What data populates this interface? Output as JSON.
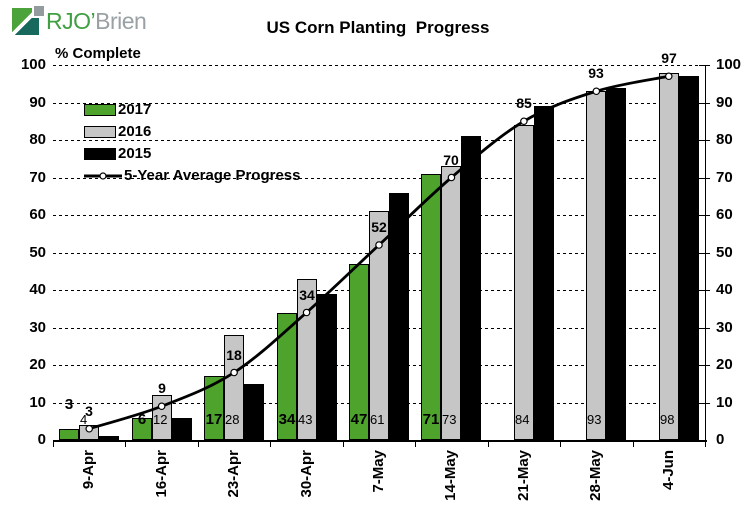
{
  "logo": {
    "primary": "RJO’",
    "secondary": "Brien"
  },
  "header": {
    "title": "US Corn Planting  Progress"
  },
  "axis": {
    "ylabel": "% Complete",
    "yticks": [
      0,
      10,
      20,
      30,
      40,
      50,
      60,
      70,
      80,
      90,
      100
    ]
  },
  "colors": {
    "green": "#4da32c",
    "gray": "#c6c6c6",
    "black": "#000000"
  },
  "chart_data": {
    "type": "bar",
    "title": "US Corn Planting Progress",
    "ylabel": "% Complete",
    "ylim": [
      0,
      100
    ],
    "grid": "dashed-horizontal",
    "legend_position": "top-left-inside",
    "categories": [
      "9-Apr",
      "16-Apr",
      "23-Apr",
      "30-Apr",
      "7-May",
      "14-May",
      "21-May",
      "28-May",
      "4-Jun"
    ],
    "series": [
      {
        "name": "2017",
        "type": "bar",
        "color": "#4da32c",
        "labeled": true,
        "values": [
          3,
          6,
          17,
          34,
          47,
          71,
          null,
          null,
          null
        ]
      },
      {
        "name": "2016",
        "type": "bar",
        "color": "#c6c6c6",
        "labeled": true,
        "values": [
          4,
          12,
          28,
          43,
          61,
          73,
          84,
          93,
          98
        ]
      },
      {
        "name": "2015",
        "type": "bar",
        "color": "#000000",
        "labeled": false,
        "values": [
          1,
          6,
          15,
          39,
          66,
          81,
          89,
          94,
          97
        ]
      },
      {
        "name": "5-Year Average Progress",
        "type": "line",
        "color": "#000000",
        "labeled": true,
        "values": [
          3,
          9,
          18,
          34,
          52,
          70,
          85,
          93,
          97
        ]
      }
    ]
  }
}
